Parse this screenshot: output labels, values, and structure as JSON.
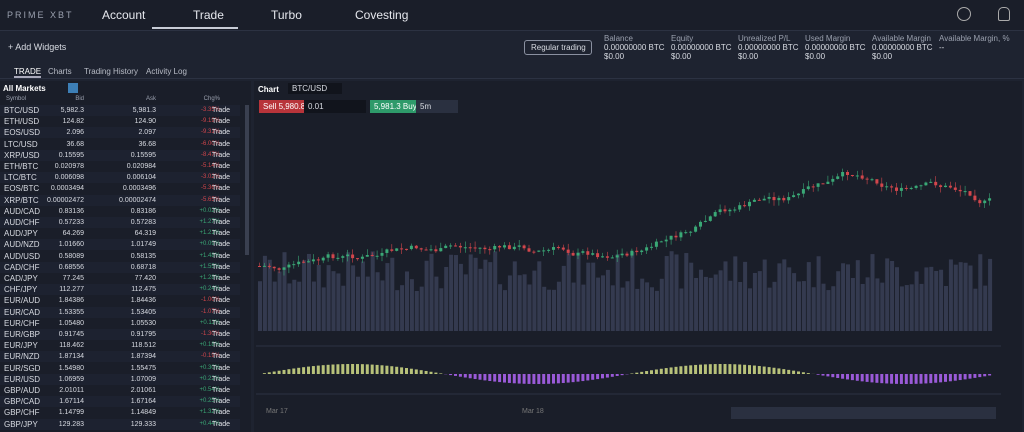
{
  "nav": {
    "logo": "PRIME XBT",
    "items": [
      "Account",
      "Trade",
      "Turbo",
      "Covesting"
    ]
  },
  "toolbar": {
    "add_widgets": "+ Add Widgets",
    "mode": "Regular trading",
    "stats": [
      {
        "label": "Balance",
        "btc": "0.00000000 BTC",
        "usd": "$0.00"
      },
      {
        "label": "Equity",
        "btc": "0.00000000 BTC",
        "usd": "$0.00"
      },
      {
        "label": "Unrealized P/L",
        "btc": "0.00000000 BTC",
        "usd": "$0.00"
      },
      {
        "label": "Used Margin",
        "btc": "0.00000000 BTC",
        "usd": "$0.00"
      },
      {
        "label": "Available Margin",
        "btc": "0.00000000 BTC",
        "usd": "$0.00"
      },
      {
        "label": "Available Margin, %",
        "btc": "--",
        "usd": ""
      }
    ]
  },
  "tabs": [
    "TRADE",
    "Charts",
    "Trading History",
    "Activity Log"
  ],
  "markets": {
    "title": "All Markets",
    "columns": [
      "Symbol",
      "Bid",
      "Ask",
      "Chg%",
      ""
    ],
    "rows": [
      [
        "BTC/USD",
        "5,982.3",
        "5,981.3",
        "-3.35%",
        "Trade"
      ],
      [
        "ETH/USD",
        "124.82",
        "124.90",
        "-9.19%",
        "Trade"
      ],
      [
        "EOS/USD",
        "2.096",
        "2.097",
        "-9.31%",
        "Trade"
      ],
      [
        "LTC/USD",
        "36.68",
        "36.68",
        "-6.00%",
        "Trade"
      ],
      [
        "XRP/USD",
        "0.15595",
        "0.15595",
        "-8.47%",
        "Trade"
      ],
      [
        "ETH/BTC",
        "0.020978",
        "0.020984",
        "-5.14%",
        "Trade"
      ],
      [
        "LTC/BTC",
        "0.006098",
        "0.006104",
        "-3.02%",
        "Trade"
      ],
      [
        "EOS/BTC",
        "0.0003494",
        "0.0003496",
        "-5.36%",
        "Trade"
      ],
      [
        "XRP/BTC",
        "0.00002472",
        "0.00002474",
        "-5.65%",
        "Trade"
      ],
      [
        "AUD/CAD",
        "0.83136",
        "0.83186",
        "+0.02%",
        "Trade"
      ],
      [
        "AUD/CHF",
        "0.57233",
        "0.57283",
        "+1.27%",
        "Trade"
      ],
      [
        "AUD/JPY",
        "64.269",
        "64.319",
        "+1.21%",
        "Trade"
      ],
      [
        "AUD/NZD",
        "1.01660",
        "1.01749",
        "+0.09%",
        "Trade"
      ],
      [
        "AUD/USD",
        "0.58089",
        "0.58135",
        "+1.48%",
        "Trade"
      ],
      [
        "CAD/CHF",
        "0.68556",
        "0.68718",
        "+1.55%",
        "Trade"
      ],
      [
        "CAD/JPY",
        "77.245",
        "77.420",
        "+1.28%",
        "Trade"
      ],
      [
        "CHF/JPY",
        "112.277",
        "112.475",
        "+0.24%",
        "Trade"
      ],
      [
        "EUR/AUD",
        "1.84386",
        "1.84436",
        "-1.00%",
        "Trade"
      ],
      [
        "EUR/CAD",
        "1.53355",
        "1.53405",
        "-1.07%",
        "Trade"
      ],
      [
        "EUR/CHF",
        "1.05480",
        "1.05530",
        "+0.11%",
        "Trade"
      ],
      [
        "EUR/GBP",
        "0.91745",
        "0.91795",
        "-1.30%",
        "Trade"
      ],
      [
        "EUR/JPY",
        "118.462",
        "118.512",
        "+0.18%",
        "Trade"
      ],
      [
        "EUR/NZD",
        "1.87134",
        "1.87394",
        "-0.19%",
        "Trade"
      ],
      [
        "EUR/SGD",
        "1.54980",
        "1.55475",
        "+0.30%",
        "Trade"
      ],
      [
        "EUR/USD",
        "1.06959",
        "1.07009",
        "+0.22%",
        "Trade"
      ],
      [
        "GBP/AUD",
        "2.01011",
        "2.01061",
        "+0.54%",
        "Trade"
      ],
      [
        "GBP/CAD",
        "1.67114",
        "1.67164",
        "+0.25%",
        "Trade"
      ],
      [
        "GBP/CHF",
        "1.14799",
        "1.14849",
        "+1.32%",
        "Trade"
      ],
      [
        "GBP/JPY",
        "129.283",
        "129.333",
        "+0.44%",
        "Trade"
      ]
    ]
  },
  "chart": {
    "title": "Chart",
    "symbol": "BTC/USD",
    "sell": "Sell 5,980.8",
    "qty": "0.01",
    "buy": "5,981.3 Buy",
    "interval": "5m",
    "dates": [
      "Mar 17",
      "Mar 18"
    ]
  }
}
